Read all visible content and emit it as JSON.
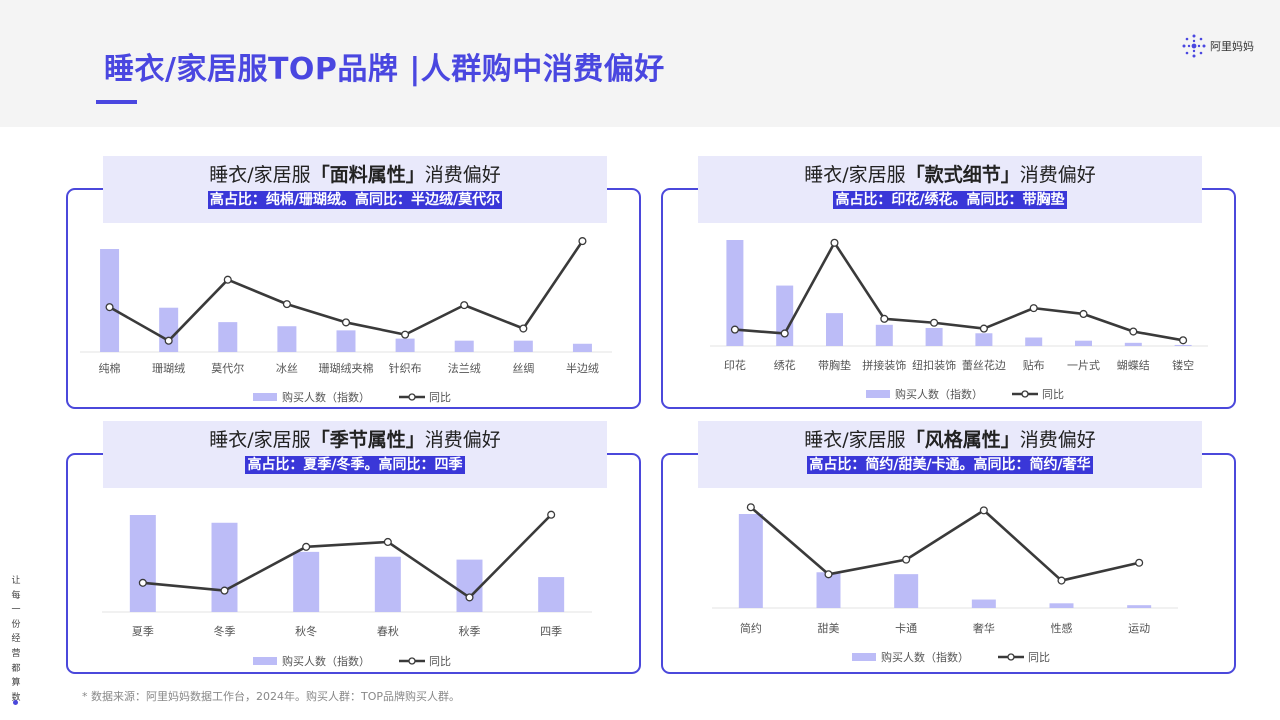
{
  "page": {
    "title": "睡衣/家居服TOP品牌 |人群购中消费偏好",
    "logo_text": "阿里妈妈",
    "side_text": "让每一份经营都算数",
    "footnote": "* 数据来源：阿里妈妈数据工作台，2024年。购买人群：TOP品牌购买人群。"
  },
  "panels": [
    {
      "title_pre": "睡衣/家居服",
      "title_bold": "「面料属性」",
      "title_post": "消费偏好",
      "subtitle": "高占比：纯棉/珊瑚绒。高同比：半边绒/莫代尔"
    },
    {
      "title_pre": "睡衣/家居服",
      "title_bold": "「款式细节」",
      "title_post": "消费偏好",
      "subtitle": "高占比：印花/绣花。高同比：带胸垫"
    },
    {
      "title_pre": "睡衣/家居服",
      "title_bold": "「季节属性」",
      "title_post": "消费偏好",
      "subtitle": "高占比：夏季/冬季。高同比：四季"
    },
    {
      "title_pre": "睡衣/家居服",
      "title_bold": "「风格属性」",
      "title_post": "消费偏好",
      "subtitle": "高占比：简约/甜美/卡通。高同比：简约/奢华"
    }
  ],
  "colors": {
    "accent": "#4a47e0",
    "bar": "#bcbcf7",
    "line": "#3a3a3a",
    "panel_head_bg": "#e9e9fb"
  },
  "chart_data": [
    {
      "type": "bar",
      "categories": [
        "纯棉",
        "珊瑚绒",
        "莫代尔",
        "冰丝",
        "珊瑚绒夹棉",
        "针织布",
        "法兰绒",
        "丝绸",
        "半边绒"
      ],
      "series": [
        {
          "name": "购买人数（指数）",
          "kind": "bar",
          "values": [
            100,
            43,
            29,
            25,
            21,
            13,
            11,
            11,
            8
          ]
        },
        {
          "name": "同比",
          "kind": "line",
          "values": [
            50,
            17,
            77,
            53,
            35,
            23,
            52,
            29,
            115
          ]
        }
      ],
      "ylim": [
        0,
        100
      ],
      "y2lim": [
        0,
        120
      ],
      "legend": "bottom",
      "grid": false
    },
    {
      "type": "bar",
      "categories": [
        "印花",
        "绣花",
        "带胸垫",
        "拼接装饰",
        "纽扣装饰",
        "蕾丝花边",
        "贴布",
        "一片式",
        "蝴蝶结",
        "镂空"
      ],
      "series": [
        {
          "name": "购买人数（指数）",
          "kind": "bar",
          "values": [
            100,
            57,
            31,
            20,
            17,
            12,
            8,
            5,
            3,
            1
          ]
        },
        {
          "name": "同比",
          "kind": "line",
          "values": [
            23,
            19,
            112,
            34,
            30,
            24,
            45,
            39,
            21,
            12
          ]
        }
      ],
      "ylim": [
        0,
        100
      ],
      "y2lim": [
        0,
        120
      ],
      "legend": "bottom",
      "grid": false
    },
    {
      "type": "bar",
      "categories": [
        "夏季",
        "冬季",
        "秋冬",
        "春秋",
        "秋季",
        "四季"
      ],
      "series": [
        {
          "name": "购买人数（指数）",
          "kind": "bar",
          "values": [
            100,
            92,
            62,
            57,
            54,
            36
          ]
        },
        {
          "name": "同比",
          "kind": "line",
          "values": [
            30,
            22,
            67,
            72,
            15,
            100
          ]
        }
      ],
      "ylim": [
        0,
        100
      ],
      "y2lim": [
        0,
        110
      ],
      "legend": "bottom",
      "grid": false
    },
    {
      "type": "bar",
      "categories": [
        "简约",
        "甜美",
        "卡通",
        "奢华",
        "性感",
        "运动"
      ],
      "series": [
        {
          "name": "购买人数（指数）",
          "kind": "bar",
          "values": [
            100,
            38,
            36,
            9,
            5,
            3
          ]
        },
        {
          "name": "同比",
          "kind": "line",
          "values": [
            100,
            36,
            50,
            97,
            30,
            47
          ]
        }
      ],
      "ylim": [
        0,
        100
      ],
      "y2lim": [
        0,
        105
      ],
      "legend": "bottom",
      "grid": false
    }
  ]
}
